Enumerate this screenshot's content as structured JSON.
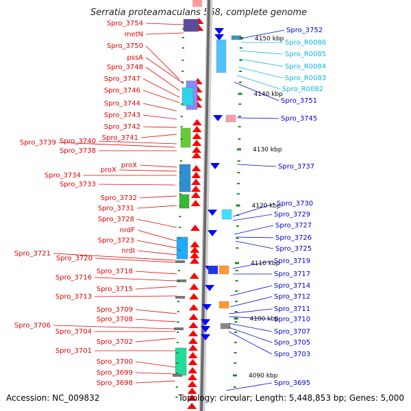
{
  "title": "Serratia proteamaculans 568, complete genome",
  "footer": {
    "accession": "Accession: NC_009832",
    "summary": "Topology: circular; Length: 5,448,853 bp; Genes: 5,000"
  },
  "colors": {
    "left_label": "#e00000",
    "right_label": "#0000cc",
    "rna_label": "#10b4e0",
    "forward_strand": "#ff0000",
    "reverse_strand": "#0000ff",
    "axis_tick": "#1a8a1a"
  },
  "left_labels": [
    "Spro_3754",
    "metN",
    "Spro_3750",
    "pssA",
    "Spro_3748",
    "Spro_3747",
    "Spro_3746",
    "Spro_3744",
    "Spro_3743",
    "Spro_3742",
    "Spro_3741",
    "Spro_3739",
    "Spro_3740",
    "Spro_3738",
    "proX",
    "proX",
    "Spro_3734",
    "Spro_3733",
    "Spro_3732",
    "Spro_3731",
    "Spro_3728",
    "nrdF",
    "Spro_3723",
    "nrdI",
    "Spro_3721",
    "Spro_3720",
    "Spro_3718",
    "Spro_3716",
    "Spro_3715",
    "Spro_3713",
    "Spro_3709",
    "Spro_3708",
    "Spro_3706",
    "Spro_3704",
    "Spro_3702",
    "Spro_3701",
    "Spro_3700",
    "Spro_3699",
    "Spro_3698"
  ],
  "right_labels": [
    "Spro_3752",
    "Spro_R0086",
    "Spro_R0085",
    "Spro_R0084",
    "Spro_R0083",
    "Spro_R0082",
    "Spro_3751",
    "Spro_3745",
    "Spro_3737",
    "Spro_3730",
    "Spro_3729",
    "Spro_3727",
    "Spro_3726",
    "Spro_3725",
    "Spro_3719",
    "Spro_3717",
    "Spro_3714",
    "Spro_3712",
    "Spro_3711",
    "Spro_3710",
    "Spro_3707",
    "Spro_3705",
    "Spro_3703",
    "Spro_3695"
  ],
  "scale_labels": [
    "4150 kbp",
    "4140 kbp",
    "4130 kbp",
    "4120 kbp",
    "4110 kbp",
    "4100 kbp",
    "4090 kbp"
  ]
}
